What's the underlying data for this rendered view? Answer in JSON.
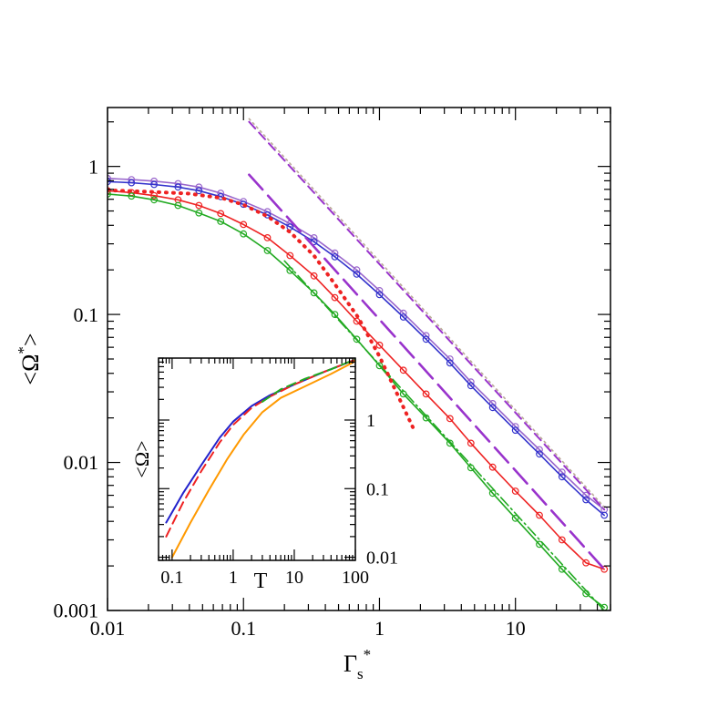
{
  "chart_data": [
    {
      "type": "line",
      "title": "",
      "xlabel_main": "Γ",
      "xlabel_sub": "s",
      "xlabel_sup": "*",
      "ylabel_main": "<Ω",
      "ylabel_sup": "*",
      "ylabel_end": ">",
      "xscale": "log",
      "yscale": "log",
      "xlim": [
        0.01,
        50
      ],
      "ylim": [
        0.001,
        2.5
      ],
      "xticks": [
        0.01,
        0.1,
        1,
        10
      ],
      "xtick_labels": [
        "0.01",
        "0.1",
        "1",
        "10"
      ],
      "yticks": [
        0.001,
        0.01,
        0.1,
        1
      ],
      "ytick_labels": [
        "0.001",
        "0.01",
        "0.1",
        "1"
      ],
      "grid": false,
      "legend": "none",
      "x": [
        0.01,
        0.015,
        0.022,
        0.033,
        0.047,
        0.068,
        0.1,
        0.15,
        0.22,
        0.33,
        0.47,
        0.68,
        1.0,
        1.5,
        2.2,
        3.3,
        4.7,
        6.8,
        10,
        15,
        22,
        33,
        45
      ],
      "series": [
        {
          "color": "#9966cc",
          "style": "solid-circles",
          "values": [
            0.83,
            0.815,
            0.795,
            0.765,
            0.725,
            0.66,
            0.58,
            0.495,
            0.41,
            0.33,
            0.26,
            0.2,
            0.145,
            0.102,
            0.072,
            0.05,
            0.035,
            0.025,
            0.0175,
            0.0122,
            0.0086,
            0.006,
            0.0048
          ]
        },
        {
          "color": "#3333cc",
          "style": "solid-circles",
          "values": [
            0.79,
            0.775,
            0.755,
            0.725,
            0.685,
            0.625,
            0.555,
            0.47,
            0.39,
            0.31,
            0.245,
            0.187,
            0.136,
            0.096,
            0.068,
            0.047,
            0.033,
            0.0235,
            0.0165,
            0.0114,
            0.008,
            0.0056,
            0.0044
          ]
        },
        {
          "color": "#ee2222",
          "style": "solid-circles",
          "values": [
            0.685,
            0.665,
            0.635,
            0.595,
            0.545,
            0.48,
            0.405,
            0.33,
            0.25,
            0.182,
            0.13,
            0.09,
            0.062,
            0.042,
            0.029,
            0.0198,
            0.0135,
            0.0093,
            0.0064,
            0.0044,
            0.003,
            0.0021,
            0.0019
          ]
        },
        {
          "color": "#22aa22",
          "style": "solid-circles",
          "values": [
            0.65,
            0.63,
            0.595,
            0.545,
            0.485,
            0.425,
            0.35,
            0.27,
            0.198,
            0.14,
            0.1,
            0.068,
            0.045,
            0.029,
            0.02,
            0.0135,
            0.0092,
            0.0062,
            0.0042,
            0.0028,
            0.0019,
            0.0013,
            0.00105
          ]
        },
        {
          "color": "#9933cc",
          "style": "dashed",
          "x": [
            0.11,
            45
          ],
          "values": [
            2.0,
            0.0048
          ]
        },
        {
          "color": "#bbaa99",
          "style": "dotted",
          "x": [
            0.11,
            45
          ],
          "values": [
            2.1,
            0.005
          ]
        },
        {
          "color": "#9933cc",
          "style": "longdash",
          "x": [
            0.11,
            45
          ],
          "values": [
            0.88,
            0.0019
          ]
        },
        {
          "color": "#22aa22",
          "style": "dashdot",
          "x": [
            0.2,
            45
          ],
          "values": [
            0.23,
            0.001
          ]
        },
        {
          "color": "#ee2222",
          "style": "thickdot",
          "x": [
            0.01,
            0.02,
            0.04,
            0.07,
            0.1,
            0.15,
            0.22,
            0.33,
            0.47,
            0.7,
            1.0,
            1.4,
            1.8
          ],
          "values": [
            0.69,
            0.675,
            0.655,
            0.61,
            0.55,
            0.46,
            0.36,
            0.25,
            0.16,
            0.095,
            0.052,
            0.027,
            0.0165
          ]
        }
      ]
    },
    {
      "type": "line",
      "title": "",
      "xlabel": "T",
      "ylabel": "<Ω>",
      "xscale": "log",
      "yscale": "log",
      "xlim": [
        0.06,
        100
      ],
      "ylim": [
        0.009,
        8
      ],
      "xticks": [
        0.1,
        1,
        10,
        100
      ],
      "xtick_labels": [
        "0.1",
        "1",
        "10",
        "100"
      ],
      "yticks": [
        0.01,
        0.1,
        1
      ],
      "ytick_labels": [
        "0.01",
        "0.1",
        "1"
      ],
      "y_axis_side": "right",
      "grid": false,
      "legend": "none",
      "series": [
        {
          "color": "#2222cc",
          "style": "solid",
          "x": [
            0.08,
            0.15,
            0.3,
            0.6,
            1.0,
            2.0,
            4.0,
            10,
            30,
            100
          ],
          "values": [
            0.032,
            0.085,
            0.22,
            0.55,
            0.95,
            1.6,
            2.3,
            3.3,
            5.0,
            7.6
          ]
        },
        {
          "color": "#ee2222",
          "style": "dashed",
          "x": [
            0.08,
            0.15,
            0.3,
            0.6,
            1.0,
            2.0,
            4.0,
            10,
            30,
            100
          ],
          "values": [
            0.02,
            0.062,
            0.18,
            0.47,
            0.85,
            1.5,
            2.2,
            3.3,
            5.0,
            7.6
          ]
        },
        {
          "color": "#ff9900",
          "style": "solid",
          "x": [
            0.1,
            0.2,
            0.4,
            0.8,
            1.5,
            3.0,
            6.0,
            15,
            40,
            100
          ],
          "values": [
            0.01,
            0.032,
            0.095,
            0.27,
            0.62,
            1.3,
            2.1,
            3.1,
            4.7,
            7.2
          ]
        },
        {
          "color": "#22aa22",
          "style": "dashed",
          "x": [
            3.0,
            6.0,
            15,
            40,
            100
          ],
          "values": [
            1.85,
            2.8,
            4.0,
            5.5,
            7.7
          ]
        }
      ]
    }
  ]
}
